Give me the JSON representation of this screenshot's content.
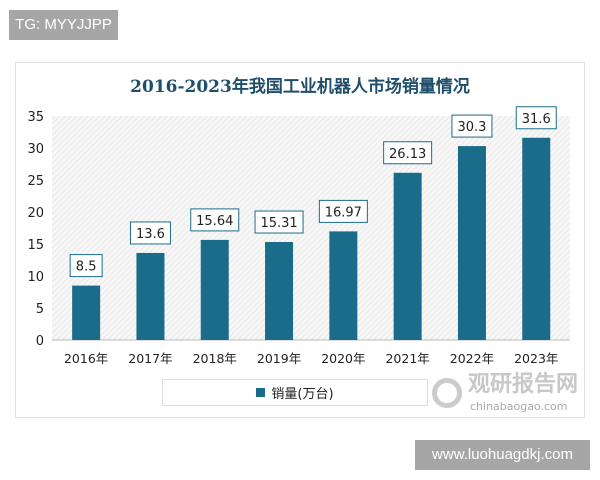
{
  "tag": "TG: MYYJJPP",
  "watermark": {
    "cn": "观研报告网",
    "en": "chinabaogao.com"
  },
  "url_banner": "www.luohuagdkj.com",
  "chart_data": {
    "type": "bar",
    "title": "2016-2023年我国工业机器人市场销量情况",
    "categories": [
      "2016年",
      "2017年",
      "2018年",
      "2019年",
      "2020年",
      "2021年",
      "2022年",
      "2023年"
    ],
    "series": [
      {
        "name": "销量(万台)",
        "values": [
          8.5,
          13.6,
          15.64,
          15.31,
          16.97,
          26.13,
          30.3,
          31.6
        ]
      }
    ],
    "data_labels": [
      "8.5",
      "13.6",
      "15.64",
      "15.31",
      "16.97",
      "26.13",
      "30.3",
      "31.6"
    ],
    "yticks": [
      0,
      5,
      10,
      15,
      20,
      25,
      30,
      35
    ],
    "ylim": [
      0,
      35
    ],
    "bar_color": "#1b6b8a",
    "legend_position": "bottom",
    "grid": false
  }
}
